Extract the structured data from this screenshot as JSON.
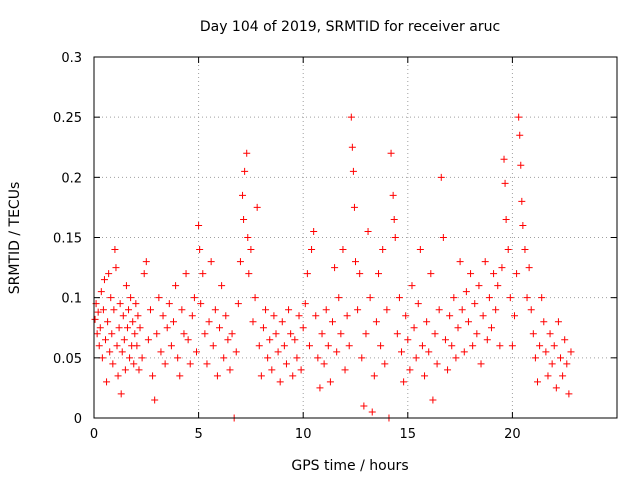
{
  "chart_data": {
    "type": "scatter",
    "title": "Day 104 of 2019, SRMTID for receiver aruc",
    "xlabel": "GPS time / hours",
    "ylabel": "SRMTID / TECUs",
    "xlim": [
      0,
      25
    ],
    "ylim": [
      0,
      0.3
    ],
    "grid": true,
    "marker": "+",
    "x_ticks": [
      0,
      5,
      10,
      15,
      20
    ],
    "x_tick_labels": [
      "0",
      "5",
      "10",
      "15",
      "20"
    ],
    "y_ticks": [
      0,
      0.05,
      0.1,
      0.15,
      0.2,
      0.25,
      0.3
    ],
    "y_tick_labels": [
      "0",
      "0.05",
      "0.1",
      "0.15",
      "0.2",
      "0.25",
      "0.3"
    ],
    "series": [
      {
        "name": "SRMTID",
        "color": "#ff0000",
        "points": [
          [
            0.05,
            0.082
          ],
          [
            0.1,
            0.095
          ],
          [
            0.15,
            0.07
          ],
          [
            0.2,
            0.088
          ],
          [
            0.25,
            0.06
          ],
          [
            0.3,
            0.075
          ],
          [
            0.35,
            0.105
          ],
          [
            0.4,
            0.05
          ],
          [
            0.45,
            0.09
          ],
          [
            0.5,
            0.115
          ],
          [
            0.55,
            0.065
          ],
          [
            0.6,
            0.03
          ],
          [
            0.65,
            0.08
          ],
          [
            0.7,
            0.12
          ],
          [
            0.75,
            0.055
          ],
          [
            0.8,
            0.1
          ],
          [
            0.85,
            0.07
          ],
          [
            0.9,
            0.045
          ],
          [
            0.95,
            0.09
          ],
          [
            1.0,
            0.14
          ],
          [
            1.05,
            0.125
          ],
          [
            1.1,
            0.06
          ],
          [
            1.15,
            0.035
          ],
          [
            1.2,
            0.075
          ],
          [
            1.25,
            0.095
          ],
          [
            1.3,
            0.02
          ],
          [
            1.35,
            0.055
          ],
          [
            1.4,
            0.085
          ],
          [
            1.45,
            0.065
          ],
          [
            1.5,
            0.04
          ],
          [
            1.55,
            0.11
          ],
          [
            1.6,
            0.075
          ],
          [
            1.65,
            0.09
          ],
          [
            1.7,
            0.05
          ],
          [
            1.75,
            0.1
          ],
          [
            1.8,
            0.06
          ],
          [
            1.85,
            0.08
          ],
          [
            1.9,
            0.045
          ],
          [
            1.95,
            0.07
          ],
          [
            2.0,
            0.095
          ],
          [
            2.05,
            0.06
          ],
          [
            2.1,
            0.085
          ],
          [
            2.15,
            0.04
          ],
          [
            2.2,
            0.075
          ],
          [
            2.3,
            0.05
          ],
          [
            2.4,
            0.12
          ],
          [
            2.5,
            0.13
          ],
          [
            2.6,
            0.065
          ],
          [
            2.7,
            0.09
          ],
          [
            2.8,
            0.035
          ],
          [
            2.9,
            0.015
          ],
          [
            3.0,
            0.07
          ],
          [
            3.1,
            0.1
          ],
          [
            3.2,
            0.055
          ],
          [
            3.3,
            0.085
          ],
          [
            3.4,
            0.045
          ],
          [
            3.5,
            0.075
          ],
          [
            3.6,
            0.095
          ],
          [
            3.7,
            0.06
          ],
          [
            3.8,
            0.08
          ],
          [
            3.9,
            0.11
          ],
          [
            4.0,
            0.05
          ],
          [
            4.1,
            0.035
          ],
          [
            4.2,
            0.09
          ],
          [
            4.3,
            0.07
          ],
          [
            4.4,
            0.12
          ],
          [
            4.5,
            0.065
          ],
          [
            4.6,
            0.045
          ],
          [
            4.7,
            0.085
          ],
          [
            4.8,
            0.1
          ],
          [
            4.9,
            0.055
          ],
          [
            5.0,
            0.16
          ],
          [
            5.05,
            0.14
          ],
          [
            5.1,
            0.095
          ],
          [
            5.2,
            0.12
          ],
          [
            5.3,
            0.07
          ],
          [
            5.4,
            0.045
          ],
          [
            5.5,
            0.08
          ],
          [
            5.6,
            0.13
          ],
          [
            5.7,
            0.06
          ],
          [
            5.8,
            0.09
          ],
          [
            5.9,
            0.035
          ],
          [
            6.0,
            0.075
          ],
          [
            6.1,
            0.11
          ],
          [
            6.2,
            0.05
          ],
          [
            6.3,
            0.085
          ],
          [
            6.4,
            0.065
          ],
          [
            6.5,
            0.04
          ],
          [
            6.6,
            0.07
          ],
          [
            6.7,
            0.0
          ],
          [
            6.8,
            0.055
          ],
          [
            6.9,
            0.095
          ],
          [
            7.0,
            0.13
          ],
          [
            7.1,
            0.185
          ],
          [
            7.15,
            0.165
          ],
          [
            7.2,
            0.205
          ],
          [
            7.3,
            0.22
          ],
          [
            7.35,
            0.15
          ],
          [
            7.4,
            0.12
          ],
          [
            7.5,
            0.14
          ],
          [
            7.6,
            0.08
          ],
          [
            7.7,
            0.1
          ],
          [
            7.8,
            0.175
          ],
          [
            7.9,
            0.06
          ],
          [
            8.0,
            0.035
          ],
          [
            8.1,
            0.075
          ],
          [
            8.2,
            0.09
          ],
          [
            8.3,
            0.05
          ],
          [
            8.4,
            0.065
          ],
          [
            8.5,
            0.04
          ],
          [
            8.6,
            0.085
          ],
          [
            8.7,
            0.07
          ],
          [
            8.8,
            0.055
          ],
          [
            8.9,
            0.03
          ],
          [
            9.0,
            0.08
          ],
          [
            9.1,
            0.06
          ],
          [
            9.2,
            0.045
          ],
          [
            9.3,
            0.09
          ],
          [
            9.4,
            0.07
          ],
          [
            9.5,
            0.035
          ],
          [
            9.6,
            0.065
          ],
          [
            9.7,
            0.05
          ],
          [
            9.8,
            0.085
          ],
          [
            9.9,
            0.04
          ],
          [
            10.0,
            0.075
          ],
          [
            10.1,
            0.095
          ],
          [
            10.2,
            0.12
          ],
          [
            10.3,
            0.06
          ],
          [
            10.4,
            0.14
          ],
          [
            10.5,
            0.155
          ],
          [
            10.6,
            0.085
          ],
          [
            10.7,
            0.05
          ],
          [
            10.8,
            0.025
          ],
          [
            10.9,
            0.07
          ],
          [
            11.0,
            0.045
          ],
          [
            11.1,
            0.09
          ],
          [
            11.2,
            0.06
          ],
          [
            11.3,
            0.03
          ],
          [
            11.4,
            0.08
          ],
          [
            11.5,
            0.125
          ],
          [
            11.6,
            0.055
          ],
          [
            11.7,
            0.1
          ],
          [
            11.8,
            0.07
          ],
          [
            11.9,
            0.14
          ],
          [
            12.0,
            0.04
          ],
          [
            12.1,
            0.085
          ],
          [
            12.2,
            0.06
          ],
          [
            12.3,
            0.25
          ],
          [
            12.35,
            0.225
          ],
          [
            12.4,
            0.205
          ],
          [
            12.45,
            0.175
          ],
          [
            12.5,
            0.13
          ],
          [
            12.6,
            0.09
          ],
          [
            12.7,
            0.12
          ],
          [
            12.8,
            0.05
          ],
          [
            12.9,
            0.01
          ],
          [
            13.0,
            0.07
          ],
          [
            13.1,
            0.155
          ],
          [
            13.2,
            0.1
          ],
          [
            13.3,
            0.005
          ],
          [
            13.4,
            0.035
          ],
          [
            13.5,
            0.08
          ],
          [
            13.6,
            0.12
          ],
          [
            13.7,
            0.06
          ],
          [
            13.8,
            0.14
          ],
          [
            13.9,
            0.045
          ],
          [
            14.0,
            0.09
          ],
          [
            14.1,
            0.0
          ],
          [
            14.2,
            0.22
          ],
          [
            14.3,
            0.185
          ],
          [
            14.35,
            0.165
          ],
          [
            14.4,
            0.15
          ],
          [
            14.5,
            0.07
          ],
          [
            14.6,
            0.1
          ],
          [
            14.7,
            0.055
          ],
          [
            14.8,
            0.03
          ],
          [
            14.9,
            0.085
          ],
          [
            15.0,
            0.065
          ],
          [
            15.1,
            0.04
          ],
          [
            15.2,
            0.11
          ],
          [
            15.3,
            0.075
          ],
          [
            15.4,
            0.05
          ],
          [
            15.5,
            0.095
          ],
          [
            15.6,
            0.14
          ],
          [
            15.7,
            0.06
          ],
          [
            15.8,
            0.035
          ],
          [
            15.9,
            0.08
          ],
          [
            16.0,
            0.055
          ],
          [
            16.1,
            0.12
          ],
          [
            16.2,
            0.015
          ],
          [
            16.3,
            0.07
          ],
          [
            16.4,
            0.045
          ],
          [
            16.5,
            0.09
          ],
          [
            16.6,
            0.2
          ],
          [
            16.7,
            0.15
          ],
          [
            16.8,
            0.065
          ],
          [
            16.9,
            0.04
          ],
          [
            17.0,
            0.085
          ],
          [
            17.1,
            0.06
          ],
          [
            17.2,
            0.1
          ],
          [
            17.3,
            0.05
          ],
          [
            17.4,
            0.075
          ],
          [
            17.5,
            0.13
          ],
          [
            17.6,
            0.09
          ],
          [
            17.7,
            0.055
          ],
          [
            17.8,
            0.105
          ],
          [
            17.9,
            0.08
          ],
          [
            18.0,
            0.12
          ],
          [
            18.1,
            0.06
          ],
          [
            18.2,
            0.095
          ],
          [
            18.3,
            0.07
          ],
          [
            18.4,
            0.11
          ],
          [
            18.5,
            0.045
          ],
          [
            18.6,
            0.085
          ],
          [
            18.7,
            0.13
          ],
          [
            18.8,
            0.065
          ],
          [
            18.9,
            0.1
          ],
          [
            19.0,
            0.075
          ],
          [
            19.1,
            0.12
          ],
          [
            19.2,
            0.09
          ],
          [
            19.3,
            0.11
          ],
          [
            19.4,
            0.06
          ],
          [
            19.5,
            0.125
          ],
          [
            19.6,
            0.215
          ],
          [
            19.65,
            0.195
          ],
          [
            19.7,
            0.165
          ],
          [
            19.8,
            0.14
          ],
          [
            19.9,
            0.1
          ],
          [
            20.0,
            0.06
          ],
          [
            20.1,
            0.085
          ],
          [
            20.2,
            0.12
          ],
          [
            20.3,
            0.25
          ],
          [
            20.35,
            0.235
          ],
          [
            20.4,
            0.21
          ],
          [
            20.45,
            0.18
          ],
          [
            20.5,
            0.16
          ],
          [
            20.6,
            0.14
          ],
          [
            20.7,
            0.1
          ],
          [
            20.8,
            0.125
          ],
          [
            20.9,
            0.09
          ],
          [
            21.0,
            0.07
          ],
          [
            21.1,
            0.05
          ],
          [
            21.2,
            0.03
          ],
          [
            21.3,
            0.06
          ],
          [
            21.4,
            0.1
          ],
          [
            21.5,
            0.08
          ],
          [
            21.6,
            0.055
          ],
          [
            21.7,
            0.035
          ],
          [
            21.8,
            0.07
          ],
          [
            21.9,
            0.045
          ],
          [
            22.0,
            0.06
          ],
          [
            22.1,
            0.025
          ],
          [
            22.2,
            0.08
          ],
          [
            22.3,
            0.05
          ],
          [
            22.4,
            0.035
          ],
          [
            22.5,
            0.065
          ],
          [
            22.6,
            0.045
          ],
          [
            22.7,
            0.02
          ],
          [
            22.8,
            0.055
          ]
        ]
      }
    ]
  }
}
